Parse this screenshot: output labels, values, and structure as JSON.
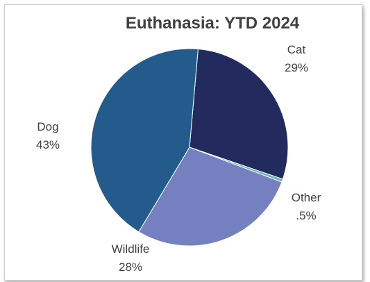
{
  "chart_data": {
    "type": "pie",
    "title": "Euthanasia: YTD 2024",
    "slices": [
      {
        "name": "Cat",
        "value": 29,
        "label": "29%",
        "color": "#222a5e"
      },
      {
        "name": "Other",
        "value": 0.5,
        "label": ".5%",
        "color": "#69b8b0"
      },
      {
        "name": "Wildlife",
        "value": 28,
        "label": "28%",
        "color": "#7480c0"
      },
      {
        "name": "Dog",
        "value": 43,
        "label": "43%",
        "color": "#235c8c"
      }
    ],
    "start_angle_deg": 5,
    "direction": "clockwise",
    "legend": "none",
    "slice_border_color": "#ffffff"
  }
}
